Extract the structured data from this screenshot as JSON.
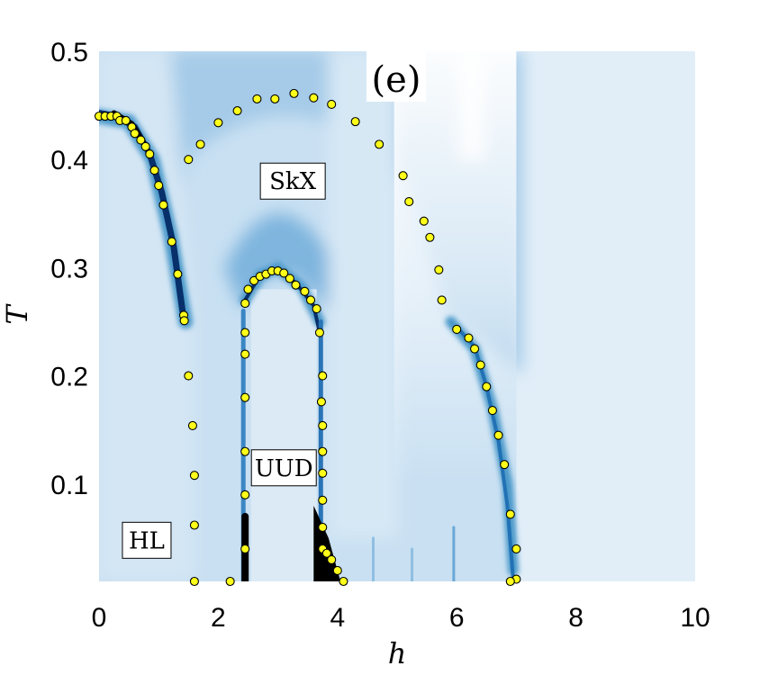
{
  "chart_data": {
    "type": "heatmap",
    "title": "",
    "xlabel": "h",
    "ylabel": "T",
    "xlim": [
      0,
      10
    ],
    "ylim": [
      0.01,
      0.5
    ],
    "xticks": [
      "0",
      "2",
      "4",
      "6",
      "8",
      "10"
    ],
    "yticks": [
      "0.1",
      "0.2",
      "0.3",
      "0.4",
      "0.5"
    ],
    "panel_label": "(e)",
    "colormap": {
      "low": "#eef5fb",
      "mid": "#4a98c9",
      "high": "#08306b",
      "peak": "#000000"
    },
    "marker_color": "#ffff1a",
    "regions": [
      {
        "label": "SkX",
        "h": 3.25,
        "T": 0.38
      },
      {
        "label": "UUD",
        "h": 3.1,
        "T": 0.115
      },
      {
        "label": "HL",
        "h": 0.8,
        "T": 0.048
      }
    ],
    "series": [
      {
        "points": [
          [
            0.0,
            0.44
          ],
          [
            0.1,
            0.44
          ],
          [
            0.2,
            0.44
          ],
          [
            0.3,
            0.44
          ],
          [
            0.35,
            0.436
          ],
          [
            0.45,
            0.436
          ],
          [
            0.55,
            0.43
          ],
          [
            0.6,
            0.424
          ],
          [
            0.7,
            0.418
          ],
          [
            0.78,
            0.412
          ],
          [
            0.85,
            0.405
          ],
          [
            0.93,
            0.39
          ],
          [
            1.0,
            0.376
          ],
          [
            1.08,
            0.358
          ],
          [
            1.22,
            0.324
          ],
          [
            1.32,
            0.294
          ],
          [
            1.42,
            0.256
          ],
          [
            1.43,
            0.251
          ],
          [
            1.5,
            0.2
          ],
          [
            1.57,
            0.154
          ],
          [
            1.6,
            0.108
          ],
          [
            1.6,
            0.062
          ],
          [
            1.6,
            0.01
          ],
          [
            1.5,
            0.4
          ],
          [
            1.7,
            0.414
          ],
          [
            2.0,
            0.434
          ],
          [
            2.32,
            0.445
          ],
          [
            2.65,
            0.456
          ],
          [
            2.95,
            0.456
          ],
          [
            3.27,
            0.461
          ],
          [
            3.6,
            0.457
          ],
          [
            3.9,
            0.451
          ],
          [
            4.3,
            0.435
          ],
          [
            4.7,
            0.414
          ],
          [
            5.1,
            0.385
          ],
          [
            5.2,
            0.361
          ],
          [
            5.45,
            0.343
          ],
          [
            5.55,
            0.328
          ],
          [
            5.7,
            0.298
          ],
          [
            5.75,
            0.27
          ],
          [
            6.0,
            0.243
          ],
          [
            6.2,
            0.235
          ],
          [
            6.3,
            0.225
          ],
          [
            6.4,
            0.21
          ],
          [
            6.5,
            0.19
          ],
          [
            6.6,
            0.168
          ],
          [
            6.7,
            0.145
          ],
          [
            6.8,
            0.118
          ],
          [
            6.9,
            0.072
          ],
          [
            7.0,
            0.04
          ],
          [
            7.0,
            0.012
          ],
          [
            6.9,
            0.01
          ],
          [
            2.2,
            0.01
          ],
          [
            2.45,
            0.04
          ],
          [
            2.45,
            0.09
          ],
          [
            2.45,
            0.13
          ],
          [
            2.45,
            0.18
          ],
          [
            2.45,
            0.22
          ],
          [
            2.45,
            0.24
          ],
          [
            2.45,
            0.267
          ],
          [
            2.5,
            0.28
          ],
          [
            2.6,
            0.288
          ],
          [
            2.7,
            0.292
          ],
          [
            2.8,
            0.294
          ],
          [
            2.9,
            0.297
          ],
          [
            3.0,
            0.297
          ],
          [
            3.1,
            0.295
          ],
          [
            3.2,
            0.29
          ],
          [
            3.3,
            0.284
          ],
          [
            3.45,
            0.278
          ],
          [
            3.55,
            0.27
          ],
          [
            3.65,
            0.262
          ],
          [
            3.7,
            0.24
          ],
          [
            3.75,
            0.2
          ],
          [
            3.73,
            0.176
          ],
          [
            3.75,
            0.154
          ],
          [
            3.75,
            0.13
          ],
          [
            3.75,
            0.11
          ],
          [
            3.75,
            0.085
          ],
          [
            3.75,
            0.06
          ],
          [
            3.75,
            0.04
          ],
          [
            3.82,
            0.036
          ],
          [
            3.9,
            0.03
          ],
          [
            4.0,
            0.02
          ],
          [
            4.1,
            0.01
          ]
        ]
      }
    ]
  }
}
